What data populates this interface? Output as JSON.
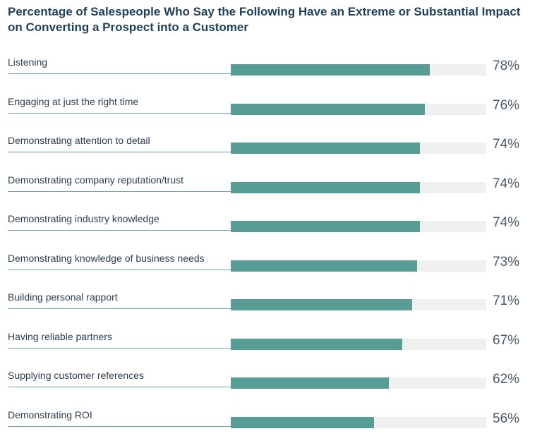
{
  "chart_data": {
    "type": "bar",
    "orientation": "horizontal",
    "title": "Percentage of Salespeople Who Say the Following Have an Extreme or Substantial Impact on Converting a Prospect into a Customer",
    "categories": [
      "Listening",
      "Engaging at just the right time",
      "Demonstrating attention to detail",
      "Demonstrating company reputation/trust",
      "Demonstrating industry knowledge",
      "Demonstrating knowledge of business needs",
      "Building personal rapport",
      "Having reliable partners",
      "Supplying customer references",
      "Demonstrating ROI"
    ],
    "values": [
      78,
      76,
      74,
      74,
      74,
      73,
      71,
      67,
      62,
      56
    ],
    "value_labels": [
      "78%",
      "76%",
      "74%",
      "74%",
      "74%",
      "73%",
      "71%",
      "67%",
      "62%",
      "56%"
    ],
    "xlim": [
      0,
      100
    ],
    "grid": false,
    "colors": {
      "bar": "#579d96",
      "track": "#f0f0f0",
      "title": "#1f3f5a",
      "rule": "#6fa7a8"
    }
  }
}
